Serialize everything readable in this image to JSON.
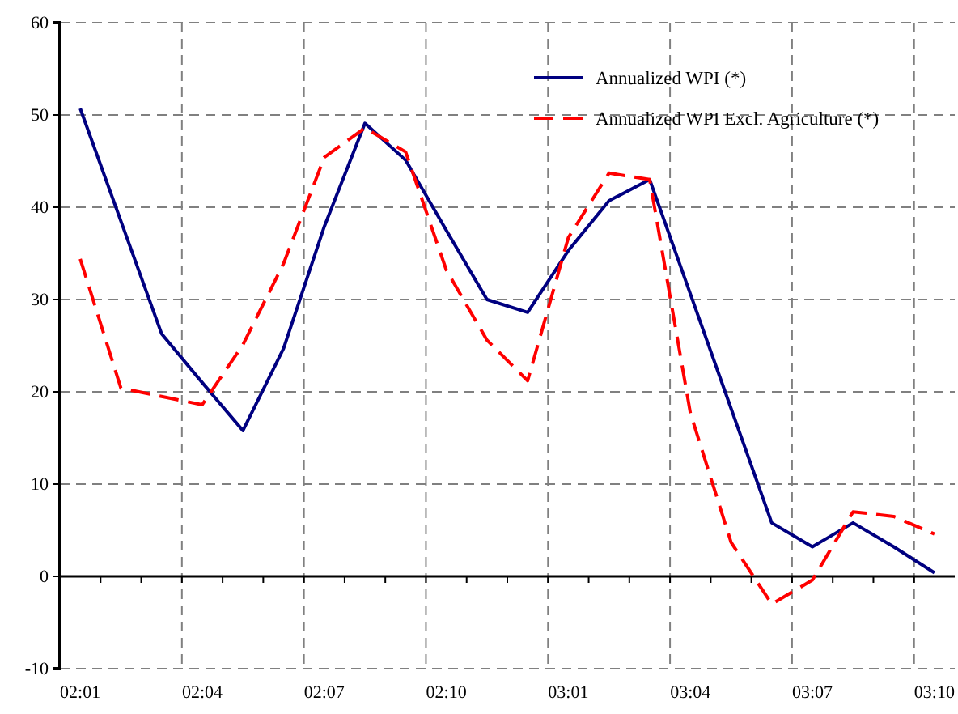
{
  "chart_data": {
    "type": "line",
    "categories": [
      "02:01",
      null,
      null,
      "02:04",
      null,
      null,
      "02:07",
      null,
      null,
      "02:10",
      null,
      null,
      "03:01",
      null,
      null,
      "03:04",
      null,
      null,
      "03:07",
      null,
      null,
      "03:10"
    ],
    "series": [
      {
        "name": "Annualized WPI (*)",
        "color": "#000080",
        "line_style": "solid",
        "values": [
          50.7,
          38.5,
          26.3,
          21,
          15.8,
          24.7,
          37.9,
          49.1,
          45.1,
          37.5,
          30,
          28.6,
          35.3,
          40.7,
          43,
          30.6,
          18.2,
          5.8,
          3.2,
          5.8,
          3.2,
          0.4
        ]
      },
      {
        "name": "Annualized WPI Excl. Agriculture (*)",
        "color": "#ff0000",
        "line_style": "dashed",
        "values": [
          34.4,
          20.4,
          19.5,
          18.6,
          25.1,
          33.9,
          45.4,
          48.6,
          46,
          33.2,
          25.6,
          21.2,
          36.7,
          43.7,
          43,
          17.7,
          3.7,
          -3,
          -0.4,
          7,
          6.5,
          4.6
        ]
      }
    ],
    "ylim": [
      -10,
      60
    ],
    "yticks": [
      -10,
      0,
      10,
      20,
      30,
      40,
      50,
      60
    ],
    "grid": true,
    "legend": "top right",
    "marker": "none"
  }
}
